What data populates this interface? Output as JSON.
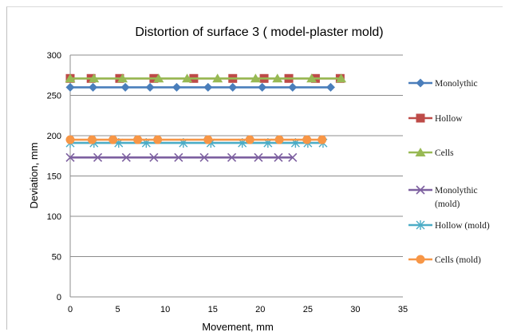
{
  "chart_data": {
    "type": "line",
    "title": "Distortion of surface 3 ( model-plaster mold)",
    "xlabel": "Movement, mm",
    "ylabel": "Deviation, mm",
    "xlim": [
      0,
      35
    ],
    "ylim": [
      0,
      300
    ],
    "xticks": [
      0,
      5,
      10,
      15,
      20,
      25,
      30,
      35
    ],
    "yticks": [
      0,
      50,
      100,
      150,
      200,
      250,
      300
    ],
    "grid": "horizontal",
    "legend": "right",
    "series": [
      {
        "name": "Monolythic",
        "color": "#4a7ebb",
        "marker": "diamond",
        "x": [
          0,
          2.4,
          5.8,
          8.4,
          11.2,
          14.5,
          17.1,
          20.2,
          23.4,
          27.4
        ],
        "y": [
          260,
          260,
          260,
          260,
          260,
          260,
          260,
          260,
          260,
          260
        ]
      },
      {
        "name": "Hollow",
        "color": "#be4b48",
        "marker": "square",
        "x": [
          0,
          2.2,
          5.2,
          8.8,
          13.0,
          17.1,
          20.4,
          23.0,
          25.8,
          28.4
        ],
        "y": [
          271,
          271,
          271,
          271,
          271,
          271,
          271,
          271,
          271,
          271
        ]
      },
      {
        "name": "Cells",
        "color": "#98b954",
        "marker": "triangle",
        "x": [
          0,
          2.5,
          5.5,
          9.3,
          12.3,
          15.5,
          19.5,
          21.8,
          25.4,
          28.5
        ],
        "y": [
          271,
          271,
          271,
          271,
          271,
          271,
          271,
          271,
          271,
          271
        ]
      },
      {
        "name": "Monolythic (mold)",
        "color": "#7d60a0",
        "marker": "x",
        "x": [
          0,
          2.9,
          5.9,
          8.8,
          11.4,
          14.1,
          17.0,
          19.8,
          21.9,
          23.4
        ],
        "y": [
          173,
          173,
          173,
          173,
          173,
          173,
          173,
          173,
          173,
          173
        ]
      },
      {
        "name": "Hollow (mold)",
        "color": "#4bacc6",
        "marker": "star",
        "x": [
          0,
          2.5,
          5.1,
          8.0,
          11.9,
          14.8,
          18.1,
          20.8,
          23.7,
          25.0,
          26.6
        ],
        "y": [
          191,
          191,
          191,
          191,
          191,
          191,
          191,
          191,
          191,
          191,
          191
        ]
      },
      {
        "name": "Cells (mold)",
        "color": "#f79646",
        "marker": "circle",
        "x": [
          0,
          2.3,
          4.5,
          7.1,
          9.2,
          14.5,
          18.9,
          22.0,
          24.9,
          26.5
        ],
        "y": [
          195,
          195,
          195,
          195,
          195,
          195,
          195,
          195,
          195,
          195
        ]
      }
    ],
    "legend_labels": [
      [
        "Monolythic"
      ],
      [
        "Hollow"
      ],
      [
        "Cells"
      ],
      [
        "Monolythic",
        "(mold)"
      ],
      [
        "Hollow (mold)"
      ],
      [
        "Cells (mold)"
      ]
    ]
  }
}
